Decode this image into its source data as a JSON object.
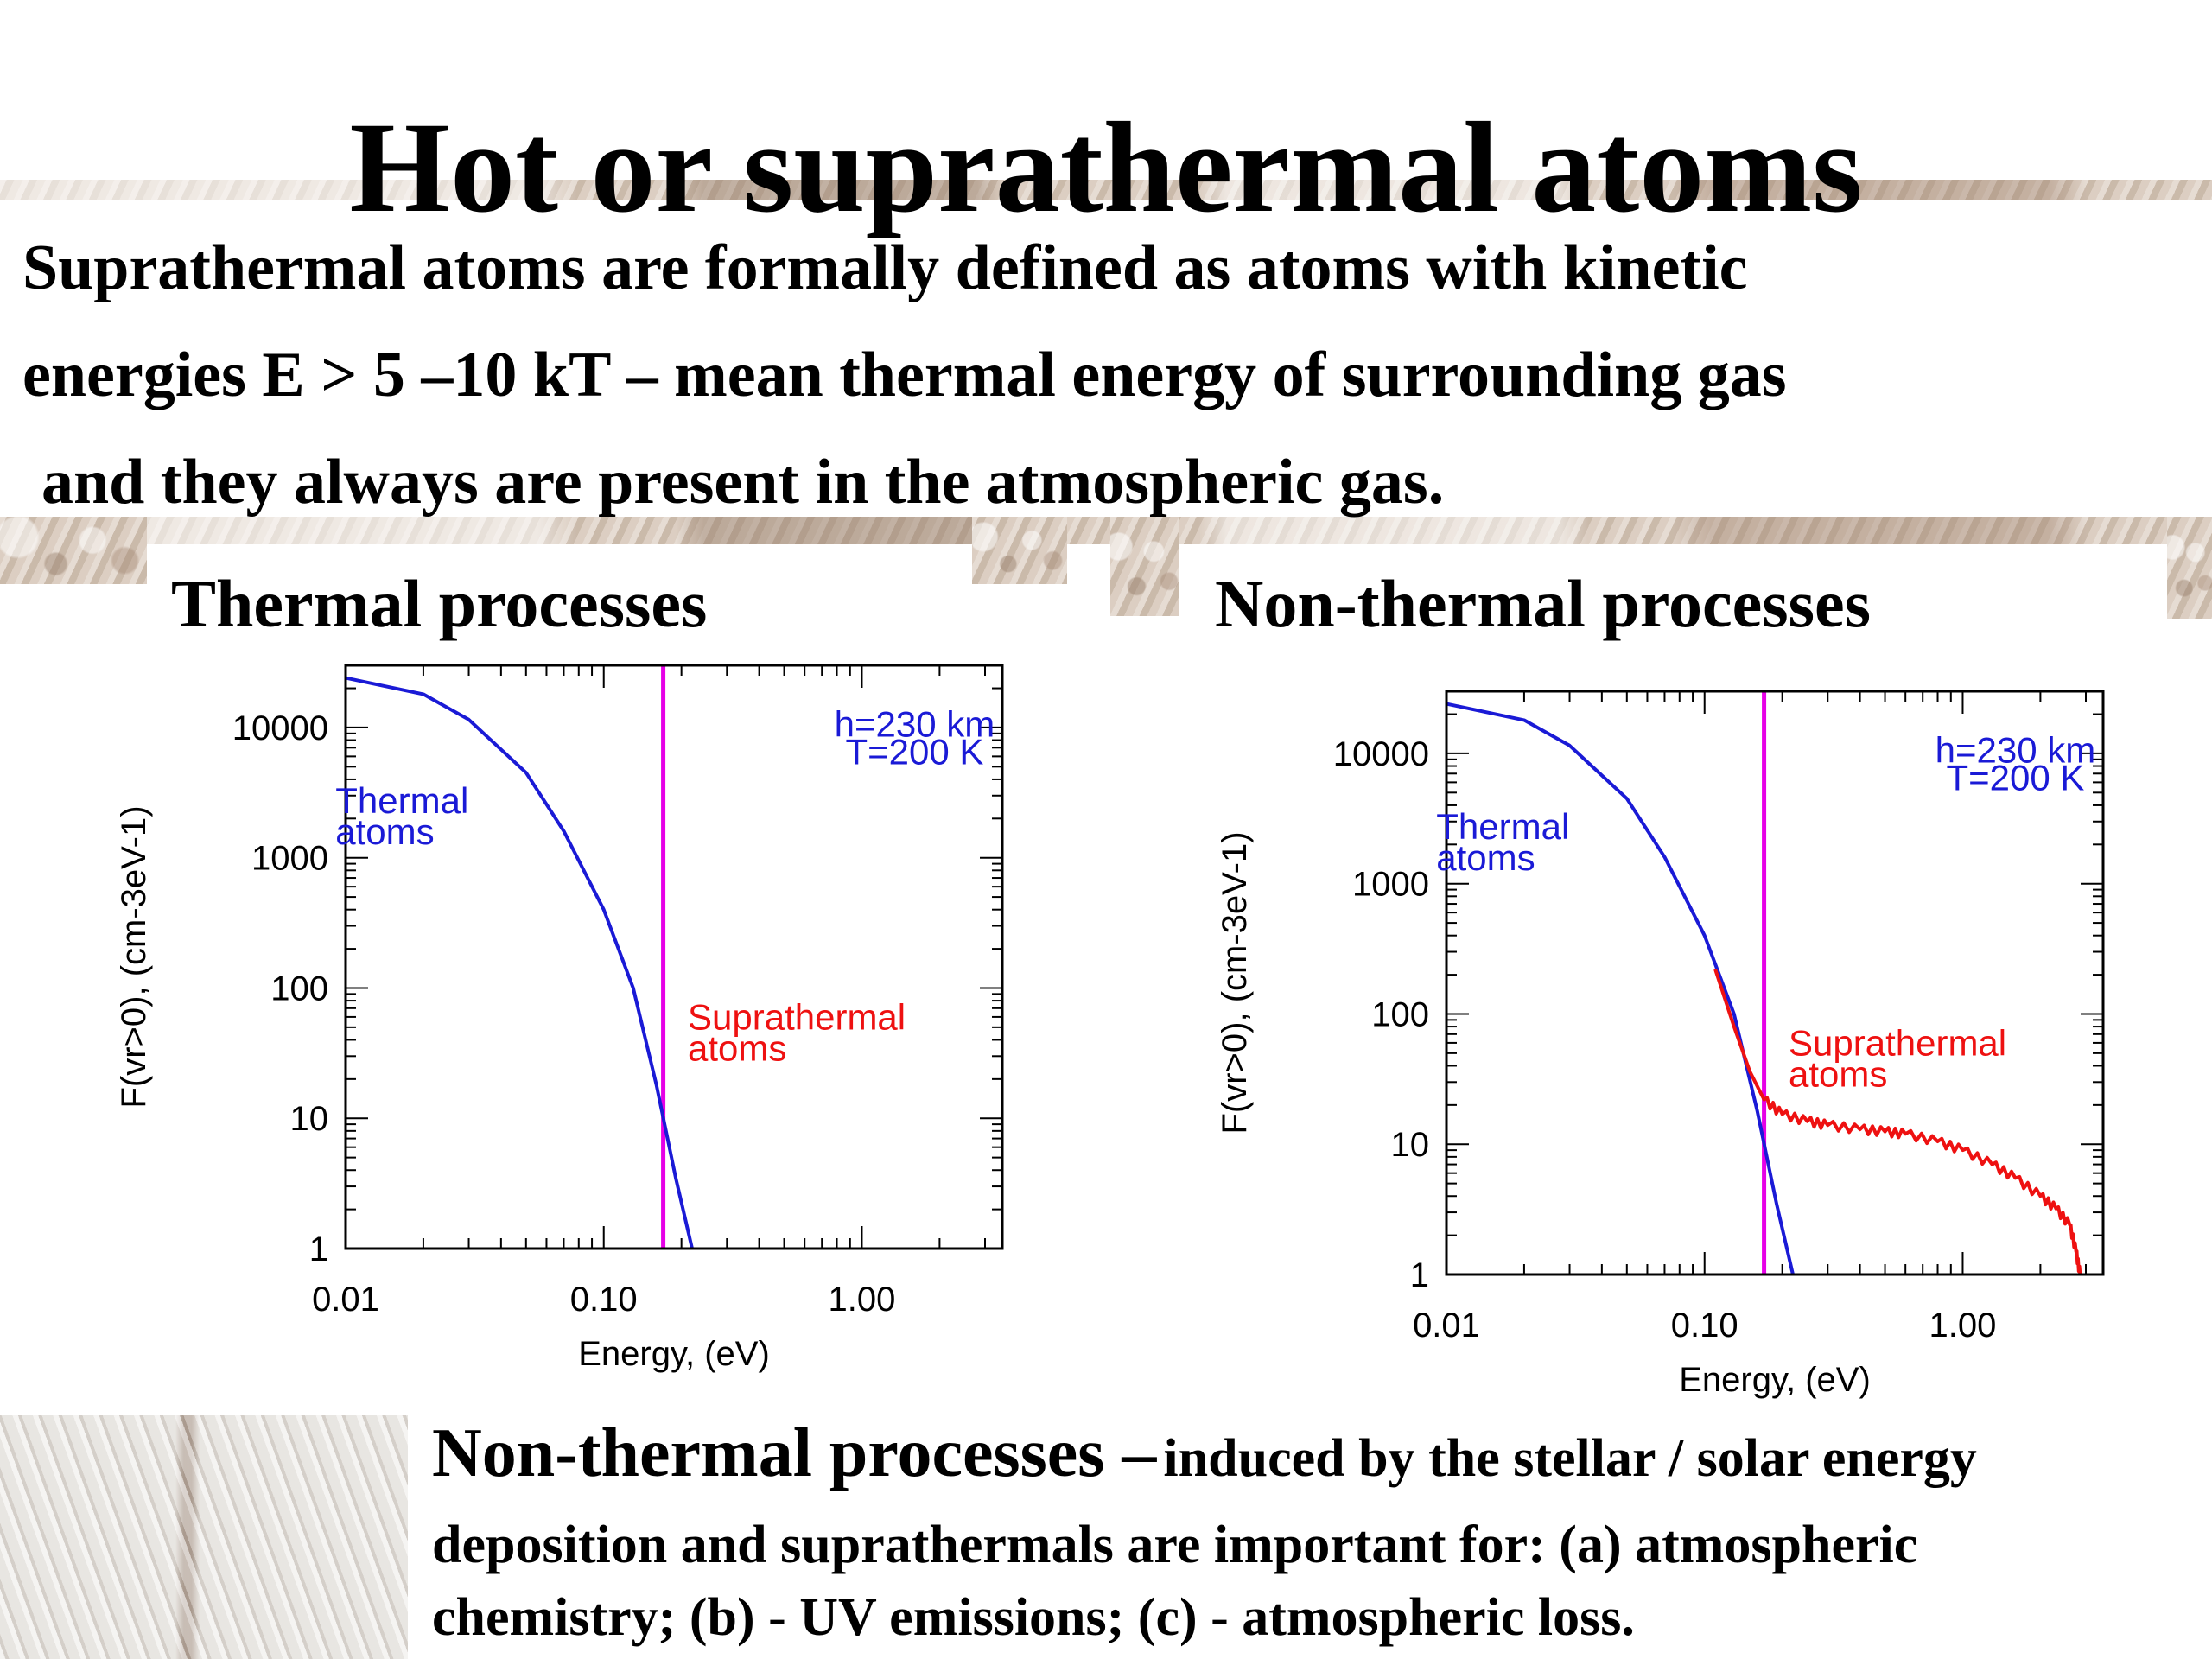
{
  "slide": {
    "title": "Hot or suprathermal atoms",
    "intro_lines": [
      "Suprathermal atoms are formally defined as atoms with kinetic",
      "energies E > 5 –10 kT – mean thermal energy of surrounding gas",
      "and they always are present in the atmospheric gas."
    ],
    "panel_left_title": "Thermal processes",
    "panel_right_title": "Non-thermal processes",
    "bottom": {
      "lead": "Non-thermal processes –",
      "rest_line1": "induced by the stellar / solar  energy",
      "line2": "deposition and suprathermals are important for: (a) atmospheric",
      "line3": "chemistry; (b) - UV emissions; (c) - atmospheric loss."
    }
  },
  "colors": {
    "thermal": "#1a1ad6",
    "suprathermal": "#ee1111",
    "threshold": "#e600e6",
    "annotation": "#1a1ad6"
  },
  "chart_data": [
    {
      "type": "line",
      "log_x": true,
      "log_y": true,
      "xlim": [
        0.01,
        3.5
      ],
      "ylim": [
        1,
        30000
      ],
      "xlabel": "Energy, (eV)",
      "ylabel": "F(vr>0), (cm-3eV-1)",
      "x_ticks": [
        0.01,
        0.1,
        1
      ],
      "x_tick_labels": [
        "0.01",
        "0.10",
        "1.00"
      ],
      "y_ticks": [
        1,
        10,
        100,
        1000,
        10000
      ],
      "y_tick_labels": [
        "1",
        "10",
        "100",
        "1000",
        "10000"
      ],
      "annotation_lines": [
        "h=230 km",
        "T=200 K"
      ],
      "threshold_x": 0.17,
      "labels": {
        "thermal": [
          "Thermal",
          "atoms"
        ],
        "suprathermal": [
          "Suprathermal",
          "atoms"
        ]
      },
      "series": [
        {
          "key": "thermal",
          "x": [
            0.01,
            0.02,
            0.03,
            0.05,
            0.07,
            0.1,
            0.13,
            0.16,
            0.19,
            0.22
          ],
          "y": [
            24000,
            18000,
            11500,
            4500,
            1600,
            400,
            100,
            18,
            3.5,
            1
          ]
        }
      ],
      "text_labels": [
        {
          "key": "thermal",
          "x": 0.0082,
          "y": 2200
        },
        {
          "key": "suprathermal",
          "x": 0.19,
          "y": 48
        }
      ],
      "annotation_at": {
        "x": 1.6,
        "y": 8500
      }
    },
    {
      "type": "line",
      "log_x": true,
      "log_y": true,
      "xlim": [
        0.01,
        3.5
      ],
      "ylim": [
        1,
        30000
      ],
      "xlabel": "Energy, (eV)",
      "ylabel": "F(vr>0), (cm-3eV-1)",
      "x_ticks": [
        0.01,
        0.1,
        1
      ],
      "x_tick_labels": [
        "0.01",
        "0.10",
        "1.00"
      ],
      "y_ticks": [
        1,
        10,
        100,
        1000,
        10000
      ],
      "y_tick_labels": [
        "1",
        "10",
        "100",
        "1000",
        "10000"
      ],
      "annotation_lines": [
        "h=230 km",
        "T=200 K"
      ],
      "threshold_x": 0.17,
      "labels": {
        "thermal": [
          "Thermal",
          "atoms"
        ],
        "suprathermal": [
          "Suprathermal",
          "atoms"
        ]
      },
      "series": [
        {
          "key": "thermal",
          "x": [
            0.01,
            0.02,
            0.03,
            0.05,
            0.07,
            0.1,
            0.13,
            0.16,
            0.19,
            0.22
          ],
          "y": [
            24000,
            18000,
            11500,
            4500,
            1600,
            400,
            100,
            18,
            3.5,
            1
          ]
        },
        {
          "key": "suprathermal",
          "x": [
            0.11,
            0.13,
            0.15,
            0.17,
            0.2,
            0.25,
            0.3,
            0.4,
            0.5,
            0.6,
            0.8,
            1.0,
            1.3,
            1.6,
            2.0,
            2.3,
            2.6,
            2.75,
            2.85
          ],
          "y": [
            220,
            80,
            36,
            22,
            17,
            15,
            14,
            13,
            12.5,
            12,
            10.5,
            9,
            7,
            5.5,
            4,
            3.2,
            2.4,
            1.5,
            1
          ]
        }
      ],
      "text_labels": [
        {
          "key": "thermal",
          "x": 0.0082,
          "y": 2200
        },
        {
          "key": "suprathermal",
          "x": 0.19,
          "y": 48
        }
      ],
      "annotation_at": {
        "x": 1.6,
        "y": 8500
      }
    }
  ]
}
